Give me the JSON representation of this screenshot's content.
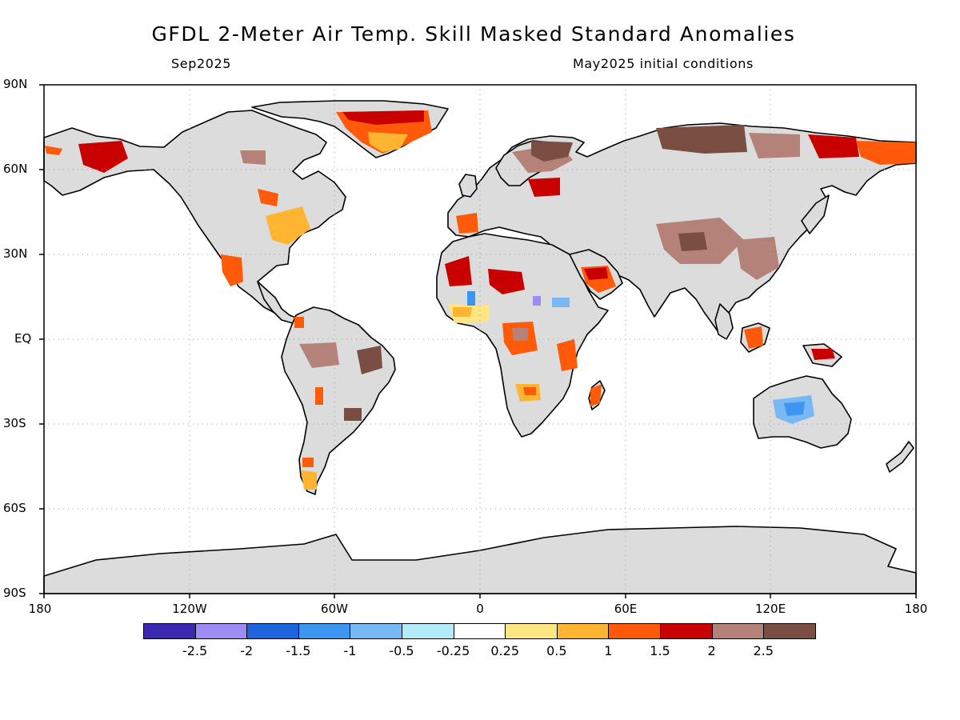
{
  "header": {
    "title": "GFDL 2-Meter Air Temp. Skill Masked Standard Anomalies",
    "valid_period": "Sep2025",
    "initial_conditions": "May2025 initial conditions"
  },
  "axes": {
    "lat_labels": [
      "90N",
      "60N",
      "30N",
      "EQ",
      "30S",
      "60S",
      "90S"
    ],
    "lon_labels": [
      "180",
      "120W",
      "60W",
      "0",
      "60E",
      "120E",
      "180"
    ]
  },
  "colors": {
    "land_masked": "#dcdcdc",
    "ocean": "#ffffff",
    "coastline": "#000000",
    "grid": "#a0a0a0"
  },
  "colorbar": {
    "colors": [
      "#3a28b0",
      "#9c8cf4",
      "#1e64dc",
      "#3c96f0",
      "#78b9f5",
      "#b4ebf8",
      "#ffffff",
      "#ffe682",
      "#ffb432",
      "#ff5a0a",
      "#c80000",
      "#b48278",
      "#7a4e42"
    ],
    "labels": [
      "-2.5",
      "-2",
      "-1.5",
      "-1",
      "-0.5",
      "-0.25",
      "0.25",
      "0.5",
      "1",
      "1.5",
      "2",
      "2.5"
    ]
  }
}
